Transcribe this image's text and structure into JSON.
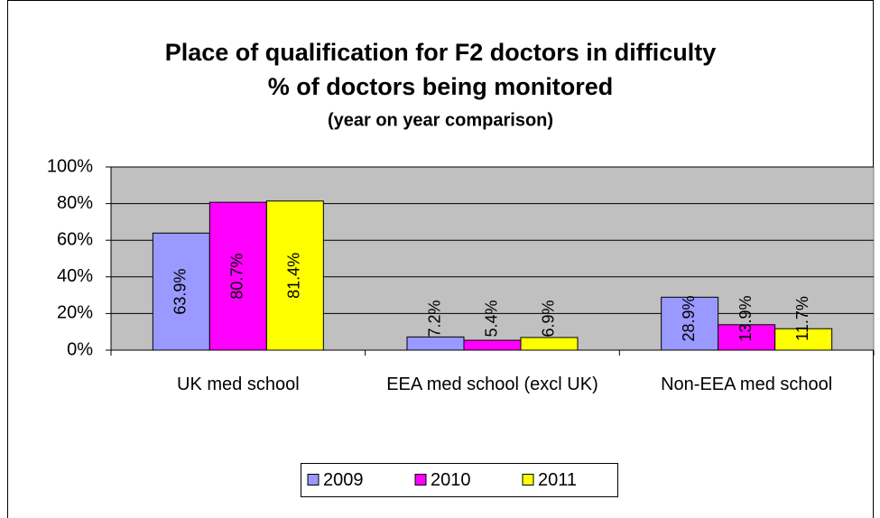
{
  "chart_data": {
    "type": "bar",
    "title": "Place of qualification for F2 doctors in difficulty",
    "subtitle": "% of doctors being monitored",
    "annotation": "(year on year comparison)",
    "categories": [
      "UK med school",
      "EEA med school (excl UK)",
      "Non-EEA med school"
    ],
    "series": [
      {
        "name": "2009",
        "color": "#9999ff",
        "values": [
          63.9,
          7.2,
          28.9
        ],
        "value_labels": [
          "63.9%",
          "7.2%",
          "28.9%"
        ]
      },
      {
        "name": "2010",
        "color": "#ff00ff",
        "values": [
          80.7,
          5.4,
          13.9
        ],
        "value_labels": [
          "80.7%",
          "5.4%",
          "13.9%"
        ]
      },
      {
        "name": "2011",
        "color": "#ffff00",
        "values": [
          81.4,
          6.9,
          11.7
        ],
        "value_labels": [
          "81.4%",
          "6.9%",
          "11.7%"
        ]
      }
    ],
    "ylim": [
      0,
      100
    ],
    "yticks": [
      {
        "value": 0,
        "label": "0%"
      },
      {
        "value": 20,
        "label": "20%"
      },
      {
        "value": 40,
        "label": "40%"
      },
      {
        "value": 60,
        "label": "60%"
      },
      {
        "value": 80,
        "label": "80%"
      },
      {
        "value": 100,
        "label": "100%"
      }
    ],
    "grid": true,
    "legend": "bottom"
  }
}
